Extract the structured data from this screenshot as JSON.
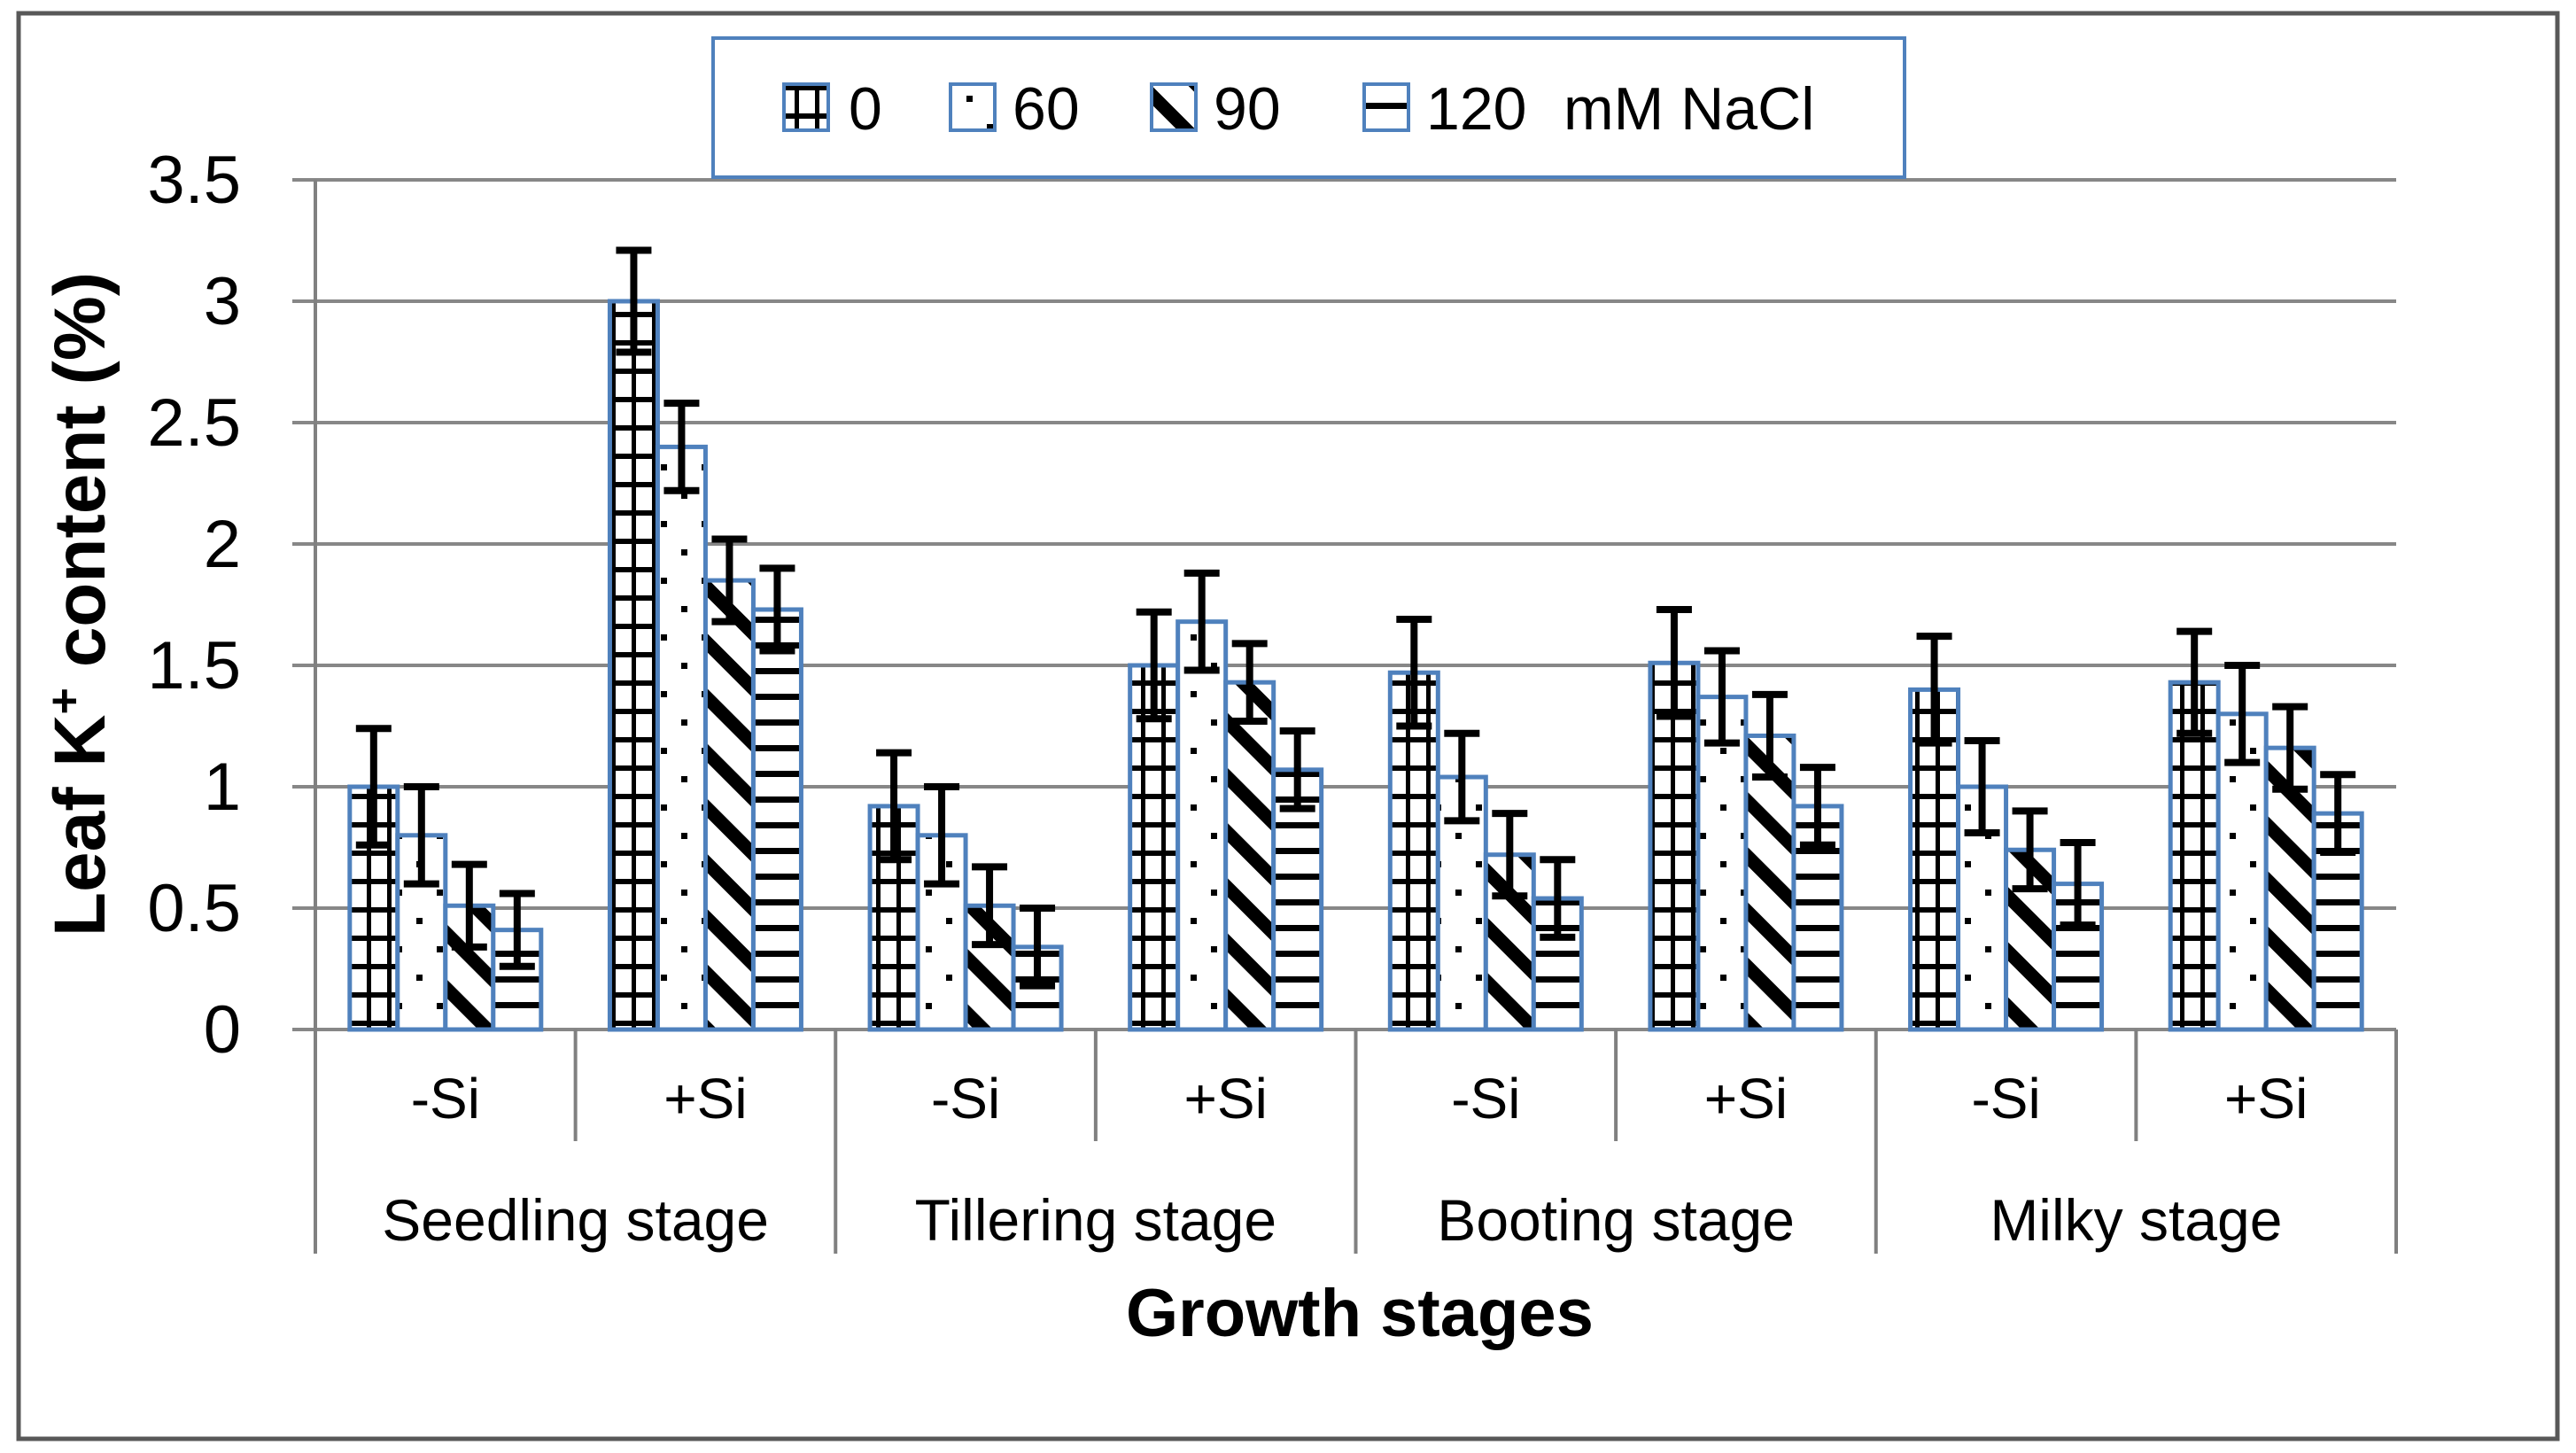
{
  "chart_data": {
    "type": "bar",
    "title": "",
    "ylabel": "Leaf K⁺ content (%)",
    "ylabel_parts": {
      "prefix": "Leaf K",
      "sup": "+",
      "suffix": " content (%)"
    },
    "xlabel": "Growth stages",
    "ylim": [
      0,
      3.5
    ],
    "ytick_step": 0.5,
    "yticks": [
      "0",
      "0.5",
      "1",
      "1.5",
      "2",
      "2.5",
      "3",
      "3.5"
    ],
    "grid": true,
    "stages": [
      "Seedling stage",
      "Tillering stage",
      "Booting stage",
      "Milky stage"
    ],
    "si_levels": [
      "-Si",
      "+Si"
    ],
    "group_labels": [
      "-Si",
      "+Si",
      "-Si",
      "+Si",
      "-Si",
      "+Si",
      "-Si",
      "+Si"
    ],
    "legend": {
      "position": "top",
      "entries": [
        "0",
        "60",
        "90",
        "120"
      ],
      "suffix": "mM NaCl",
      "patterns": [
        "grid",
        "dots",
        "diagonal",
        "hlines"
      ]
    },
    "series": [
      {
        "name": "0",
        "pattern": "grid",
        "values": [
          1.0,
          3.0,
          0.92,
          1.5,
          1.47,
          1.51,
          1.4,
          1.43
        ],
        "errors": [
          0.24,
          0.21,
          0.22,
          0.22,
          0.22,
          0.22,
          0.22,
          0.21
        ]
      },
      {
        "name": "60",
        "pattern": "dots",
        "values": [
          0.8,
          2.4,
          0.8,
          1.68,
          1.04,
          1.37,
          1.0,
          1.3
        ],
        "errors": [
          0.2,
          0.18,
          0.2,
          0.2,
          0.18,
          0.19,
          0.19,
          0.2
        ]
      },
      {
        "name": "90",
        "pattern": "diagonal",
        "values": [
          0.51,
          1.85,
          0.51,
          1.43,
          0.72,
          1.21,
          0.74,
          1.16
        ],
        "errors": [
          0.17,
          0.17,
          0.16,
          0.16,
          0.17,
          0.17,
          0.16,
          0.17
        ]
      },
      {
        "name": "120",
        "pattern": "hlines",
        "values": [
          0.41,
          1.73,
          0.34,
          1.07,
          0.54,
          0.92,
          0.6,
          0.89
        ],
        "errors": [
          0.15,
          0.17,
          0.16,
          0.16,
          0.16,
          0.16,
          0.17,
          0.16
        ]
      }
    ],
    "colors": {
      "bar_outline": "#4f81bd",
      "bar_fill": "#ffffff",
      "pattern_ink": "#000000",
      "gridline": "#878787",
      "axis": "#808080",
      "error_bar": "#000000",
      "legend_border": "#4f81bd",
      "outer_border": "#585858",
      "text": "#000000"
    }
  }
}
